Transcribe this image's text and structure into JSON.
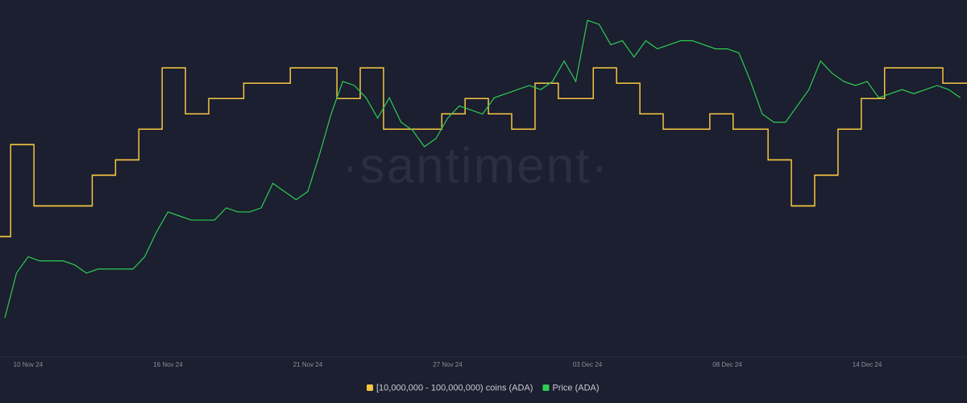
{
  "chart_data": {
    "type": "line",
    "watermark": "·santiment·",
    "categories": [
      null,
      null,
      "10 Nov 24",
      null,
      null,
      null,
      null,
      null,
      null,
      null,
      null,
      null,
      null,
      null,
      "16 Nov 24",
      null,
      null,
      null,
      null,
      null,
      null,
      null,
      null,
      null,
      null,
      null,
      "21 Nov 24",
      null,
      null,
      null,
      null,
      null,
      null,
      null,
      null,
      null,
      null,
      null,
      "27 Nov 24",
      null,
      null,
      null,
      null,
      null,
      null,
      null,
      null,
      null,
      null,
      null,
      "03 Dec 24",
      null,
      null,
      null,
      null,
      null,
      null,
      null,
      null,
      null,
      null,
      null,
      "08 Dec 24",
      null,
      null,
      null,
      null,
      null,
      null,
      null,
      null,
      null,
      null,
      null,
      "14 Dec 24",
      null,
      null,
      null,
      null,
      null,
      null,
      null,
      null
    ],
    "series": [
      {
        "name": "[10,000,000 - 100,000,000) coins (ADA)",
        "color": "#f5c542",
        "axis": "y2",
        "step": true,
        "values": [
          509,
          515,
          515,
          511,
          511,
          511,
          511,
          511,
          513,
          513,
          514,
          514,
          516,
          516,
          520,
          520,
          517,
          517,
          518,
          518,
          518,
          519,
          519,
          519,
          519,
          520,
          520,
          520,
          520,
          518,
          518,
          520,
          520,
          516,
          516,
          516,
          516,
          516,
          517,
          517,
          518,
          518,
          517,
          517,
          516,
          516,
          519,
          519,
          518,
          518,
          518,
          520,
          520,
          519,
          519,
          517,
          517,
          516,
          516,
          516,
          516,
          517,
          517,
          516,
          516,
          516,
          514,
          514,
          511,
          511,
          513,
          513,
          516,
          516,
          518,
          518,
          520,
          520,
          520,
          520,
          520,
          519,
          519
        ]
      },
      {
        "name": "Price (ADA)",
        "color": "#2ecc55",
        "values": [
          0.55,
          0.66,
          0.7,
          0.69,
          0.69,
          0.69,
          0.68,
          0.66,
          0.67,
          0.67,
          0.67,
          0.67,
          0.7,
          0.76,
          0.81,
          0.8,
          0.79,
          0.79,
          0.79,
          0.82,
          0.81,
          0.81,
          0.82,
          0.88,
          0.86,
          0.84,
          0.86,
          0.95,
          1.05,
          1.13,
          1.12,
          1.09,
          1.04,
          1.09,
          1.03,
          1.01,
          0.97,
          0.99,
          1.04,
          1.07,
          1.06,
          1.05,
          1.09,
          1.1,
          1.11,
          1.12,
          1.11,
          1.13,
          1.18,
          1.13,
          1.28,
          1.27,
          1.22,
          1.23,
          1.19,
          1.23,
          1.21,
          1.22,
          1.23,
          1.23,
          1.22,
          1.21,
          1.21,
          1.2,
          1.13,
          1.05,
          1.03,
          1.03,
          1.07,
          1.11,
          1.18,
          1.15,
          1.13,
          1.12,
          1.13,
          1.09,
          1.1,
          1.11,
          1.1,
          1.11,
          1.12,
          1.11,
          1.09
        ]
      }
    ],
    "ylim": [
      0.46,
      1.31
    ],
    "y2lim": [
      501.3,
      523.9
    ],
    "grid": false,
    "legend": "bottom"
  }
}
